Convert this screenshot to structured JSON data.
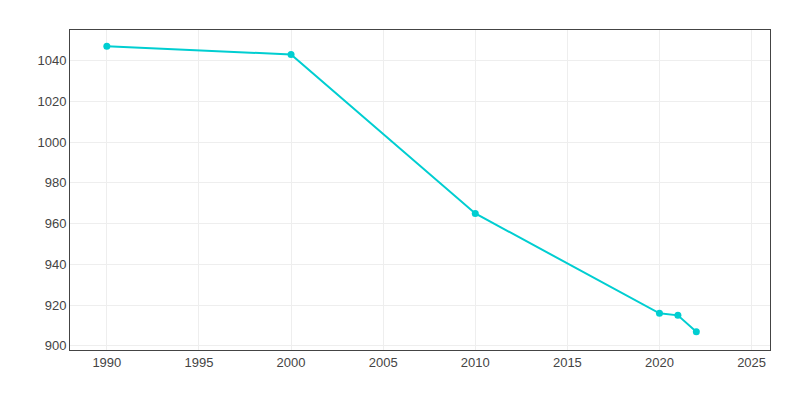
{
  "chart_data": {
    "type": "line",
    "x": [
      1990,
      2000,
      2010,
      2020,
      2021,
      2022
    ],
    "values": [
      1047,
      1043,
      965,
      916,
      915,
      907
    ],
    "color": "#00CED1",
    "marker": "circle",
    "line_style": "solid",
    "xlim": [
      1988,
      2026
    ],
    "ylim": [
      898,
      1055
    ],
    "xticks": [
      1990,
      1995,
      2000,
      2005,
      2010,
      2015,
      2020,
      2025
    ],
    "yticks": [
      900,
      920,
      940,
      960,
      980,
      1000,
      1020,
      1040
    ],
    "grid": true
  }
}
